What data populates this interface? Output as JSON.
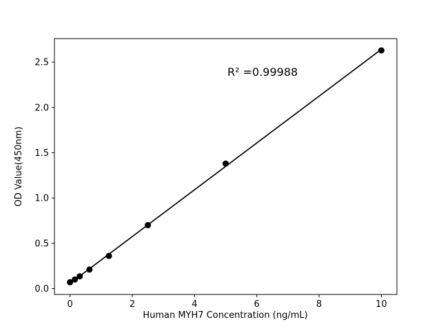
{
  "chart_data": {
    "type": "scatter",
    "title": "",
    "xlabel": "Human MYH7 Concentration (ng/mL)",
    "ylabel": "OD Value(450nm)",
    "x": [
      0,
      0.156,
      0.3125,
      0.625,
      1.25,
      2.5,
      5,
      10
    ],
    "y": [
      0.07,
      0.1,
      0.135,
      0.21,
      0.36,
      0.7,
      1.38,
      2.63
    ],
    "xticks": [
      0,
      2,
      4,
      6,
      8,
      10
    ],
    "xtick_labels": [
      "0",
      "2",
      "4",
      "6",
      "8",
      "10"
    ],
    "yticks": [
      0.0,
      0.5,
      1.0,
      1.5,
      2.0,
      2.5
    ],
    "ytick_labels": [
      "0.0",
      "0.5",
      "1.0",
      "1.5",
      "2.0",
      "2.5"
    ],
    "xlim": [
      -0.5,
      10.5
    ],
    "ylim": [
      -0.065,
      2.76
    ],
    "fit_line": true,
    "grid": false,
    "legend": "none",
    "annotation": {
      "text": "R² =0.99988"
    },
    "colors": {
      "marker": "#000000",
      "line": "#000000",
      "spine": "#000000",
      "background": "#ffffff"
    }
  }
}
